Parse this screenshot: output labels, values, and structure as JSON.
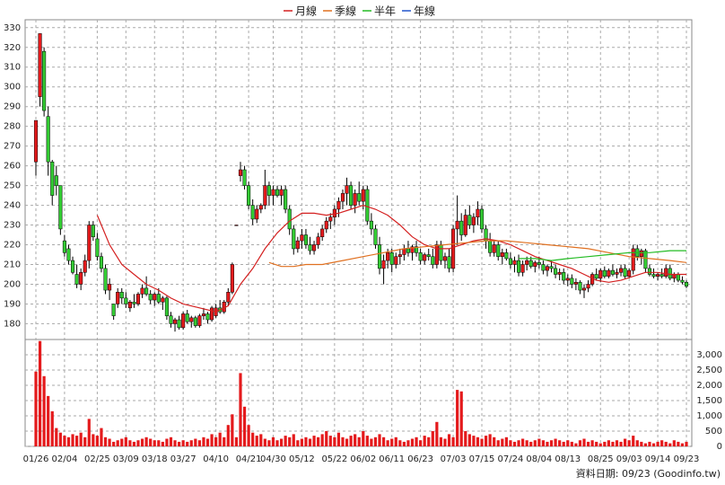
{
  "chart_data": {
    "type": "candlestick",
    "categories": [
      "01/26",
      null,
      null,
      null,
      null,
      null,
      null,
      "02/04",
      null,
      null,
      null,
      null,
      null,
      null,
      null,
      "02/25",
      null,
      null,
      null,
      null,
      null,
      null,
      "03/09",
      null,
      null,
      null,
      null,
      null,
      null,
      "03/18",
      null,
      null,
      null,
      null,
      null,
      null,
      "03/27",
      null,
      null,
      null,
      null,
      null,
      null,
      null,
      "04/10",
      null,
      null,
      null,
      null,
      null,
      null,
      null,
      "04/21",
      null,
      null,
      null,
      null,
      null,
      "04/30",
      null,
      null,
      null,
      null,
      null,
      null,
      "05/12",
      null,
      null,
      null,
      null,
      null,
      null,
      null,
      "05/22",
      null,
      null,
      null,
      null,
      null,
      null,
      "06/02",
      null,
      null,
      null,
      null,
      null,
      null,
      "06/11",
      null,
      null,
      null,
      null,
      null,
      null,
      "06/23",
      null,
      null,
      null,
      null,
      null,
      null,
      null,
      "07/03",
      null,
      null,
      null,
      null,
      null,
      null,
      "07/15",
      null,
      null,
      null,
      null,
      null,
      null,
      "07/24",
      null,
      null,
      null,
      null,
      null,
      null,
      "08/04",
      null,
      null,
      null,
      null,
      null,
      null,
      "08/13",
      null,
      null,
      null,
      null,
      null,
      null,
      null,
      "08/25",
      null,
      null,
      null,
      null,
      null,
      null,
      "09/03",
      null,
      null,
      null,
      null,
      null,
      null,
      "09/14",
      null,
      null,
      null,
      null,
      null,
      null,
      "09/23"
    ],
    "candles": [
      [
        262,
        283,
        255,
        283
      ],
      [
        295,
        327,
        290,
        327
      ],
      [
        318,
        320,
        285,
        288
      ],
      [
        285,
        290,
        255,
        262
      ],
      [
        262,
        263,
        240,
        245
      ],
      [
        255,
        260,
        245,
        250
      ],
      [
        250,
        250,
        225,
        228
      ],
      [
        222,
        225,
        214,
        216
      ],
      [
        218,
        220,
        210,
        212
      ],
      [
        212,
        214,
        205,
        206
      ],
      [
        205,
        210,
        198,
        200
      ],
      [
        200,
        208,
        197,
        206
      ],
      [
        206,
        215,
        204,
        212
      ],
      [
        212,
        232,
        208,
        230
      ],
      [
        230,
        232,
        222,
        224
      ],
      [
        223,
        226,
        212,
        214
      ],
      [
        214,
        216,
        206,
        208
      ],
      [
        208,
        210,
        195,
        197
      ],
      [
        197,
        203,
        192,
        200
      ],
      [
        190,
        190,
        182,
        184
      ],
      [
        190,
        198,
        188,
        196
      ],
      [
        196,
        198,
        190,
        193
      ],
      [
        193,
        196,
        188,
        190
      ],
      [
        188,
        192,
        186,
        191
      ],
      [
        191,
        195,
        188,
        190
      ],
      [
        190,
        196,
        189,
        195
      ],
      [
        195,
        200,
        193,
        198
      ],
      [
        198,
        204,
        194,
        195
      ],
      [
        195,
        197,
        190,
        192
      ],
      [
        192,
        196,
        189,
        195
      ],
      [
        195,
        198,
        190,
        191
      ],
      [
        191,
        194,
        187,
        193
      ],
      [
        193,
        194,
        182,
        184
      ],
      [
        184,
        186,
        178,
        180
      ],
      [
        180,
        183,
        176,
        182
      ],
      [
        182,
        184,
        177,
        178
      ],
      [
        178,
        186,
        177,
        185
      ],
      [
        185,
        187,
        180,
        181
      ],
      [
        181,
        184,
        178,
        183
      ],
      [
        183,
        184,
        178,
        179
      ],
      [
        179,
        185,
        178,
        184
      ],
      [
        184,
        188,
        182,
        185
      ],
      [
        185,
        186,
        180,
        182
      ],
      [
        182,
        189,
        181,
        188
      ],
      [
        184,
        190,
        183,
        188
      ],
      [
        188,
        192,
        185,
        186
      ],
      [
        186,
        192,
        185,
        191
      ],
      [
        191,
        198,
        189,
        196
      ],
      [
        196,
        211,
        195,
        210
      ],
      [
        230,
        230,
        230,
        230
      ],
      [
        255,
        262,
        252,
        258
      ],
      [
        258,
        260,
        248,
        250
      ],
      [
        250,
        252,
        238,
        240
      ],
      [
        240,
        243,
        230,
        233
      ],
      [
        233,
        240,
        231,
        238
      ],
      [
        238,
        241,
        236,
        240
      ],
      [
        240,
        258,
        238,
        250
      ],
      [
        250,
        252,
        240,
        245
      ],
      [
        245,
        250,
        240,
        248
      ],
      [
        248,
        250,
        244,
        245
      ],
      [
        245,
        250,
        240,
        248
      ],
      [
        248,
        250,
        236,
        238
      ],
      [
        238,
        240,
        225,
        228
      ],
      [
        228,
        230,
        215,
        218
      ],
      [
        218,
        224,
        216,
        222
      ],
      [
        222,
        228,
        218,
        225
      ],
      [
        225,
        228,
        218,
        220
      ],
      [
        220,
        224,
        215,
        217
      ],
      [
        217,
        222,
        215,
        220
      ],
      [
        220,
        226,
        218,
        224
      ],
      [
        224,
        230,
        222,
        228
      ],
      [
        228,
        234,
        226,
        232
      ],
      [
        232,
        236,
        228,
        234
      ],
      [
        234,
        240,
        230,
        238
      ],
      [
        238,
        244,
        234,
        242
      ],
      [
        242,
        248,
        238,
        246
      ],
      [
        246,
        254,
        240,
        250
      ],
      [
        250,
        252,
        238,
        240
      ],
      [
        240,
        248,
        236,
        246
      ],
      [
        246,
        252,
        240,
        242
      ],
      [
        242,
        250,
        238,
        248
      ],
      [
        248,
        250,
        230,
        232
      ],
      [
        232,
        236,
        225,
        228
      ],
      [
        228,
        230,
        218,
        220
      ],
      [
        220,
        224,
        205,
        208
      ],
      [
        208,
        215,
        200,
        212
      ],
      [
        212,
        218,
        208,
        216
      ],
      [
        216,
        218,
        206,
        210
      ],
      [
        210,
        216,
        208,
        214
      ],
      [
        214,
        218,
        210,
        215
      ],
      [
        215,
        220,
        212,
        218
      ],
      [
        218,
        222,
        214,
        216
      ],
      [
        216,
        220,
        212,
        219
      ],
      [
        219,
        222,
        214,
        216
      ],
      [
        216,
        218,
        210,
        212
      ],
      [
        212,
        216,
        210,
        215
      ],
      [
        215,
        218,
        212,
        214
      ],
      [
        214,
        218,
        208,
        210
      ],
      [
        210,
        222,
        208,
        220
      ],
      [
        220,
        222,
        210,
        212
      ],
      [
        212,
        216,
        208,
        214
      ],
      [
        214,
        218,
        206,
        208
      ],
      [
        208,
        230,
        206,
        228
      ],
      [
        228,
        245,
        220,
        232
      ],
      [
        232,
        236,
        222,
        225
      ],
      [
        225,
        238,
        224,
        235
      ],
      [
        235,
        240,
        228,
        230
      ],
      [
        230,
        236,
        226,
        234
      ],
      [
        234,
        242,
        230,
        238
      ],
      [
        238,
        240,
        226,
        228
      ],
      [
        228,
        230,
        218,
        222
      ],
      [
        222,
        226,
        214,
        216
      ],
      [
        216,
        222,
        214,
        220
      ],
      [
        220,
        222,
        212,
        214
      ],
      [
        214,
        218,
        210,
        216
      ],
      [
        216,
        218,
        212,
        213
      ],
      [
        213,
        216,
        208,
        210
      ],
      [
        210,
        214,
        206,
        212
      ],
      [
        212,
        215,
        204,
        206
      ],
      [
        206,
        212,
        204,
        210
      ],
      [
        210,
        214,
        207,
        212
      ],
      [
        212,
        214,
        208,
        209
      ],
      [
        209,
        212,
        206,
        211
      ],
      [
        211,
        214,
        208,
        210
      ],
      [
        210,
        212,
        205,
        207
      ],
      [
        207,
        210,
        204,
        209
      ],
      [
        209,
        212,
        206,
        208
      ],
      [
        208,
        210,
        203,
        205
      ],
      [
        205,
        208,
        202,
        206
      ],
      [
        206,
        208,
        200,
        202
      ],
      [
        202,
        205,
        199,
        203
      ],
      [
        203,
        205,
        198,
        200
      ],
      [
        200,
        203,
        197,
        201
      ],
      [
        201,
        202,
        195,
        197
      ],
      [
        197,
        200,
        193,
        198
      ],
      [
        198,
        202,
        196,
        200
      ],
      [
        200,
        206,
        199,
        205
      ],
      [
        205,
        208,
        202,
        203
      ],
      [
        203,
        208,
        201,
        207
      ],
      [
        207,
        209,
        203,
        204
      ],
      [
        204,
        208,
        203,
        207
      ],
      [
        207,
        210,
        204,
        205
      ],
      [
        205,
        208,
        203,
        206
      ],
      [
        206,
        210,
        204,
        208
      ],
      [
        208,
        210,
        203,
        204
      ],
      [
        204,
        208,
        203,
        207
      ],
      [
        207,
        220,
        205,
        218
      ],
      [
        218,
        220,
        212,
        214
      ],
      [
        214,
        218,
        210,
        217
      ],
      [
        217,
        218,
        206,
        208
      ],
      [
        208,
        210,
        204,
        205
      ],
      [
        205,
        208,
        203,
        204
      ],
      [
        204,
        206,
        202,
        205
      ],
      [
        205,
        208,
        203,
        204
      ],
      [
        204,
        210,
        203,
        208
      ],
      [
        208,
        210,
        202,
        203
      ],
      [
        203,
        206,
        201,
        205
      ],
      [
        205,
        206,
        201,
        202
      ],
      [
        202,
        204,
        200,
        201
      ],
      [
        201,
        202,
        198,
        199
      ]
    ],
    "up_color": "#e41a1c",
    "down_color": "#33cc33",
    "volume": [
      2450,
      3450,
      2300,
      1650,
      1150,
      600,
      450,
      350,
      300,
      400,
      350,
      450,
      300,
      900,
      400,
      350,
      600,
      300,
      250,
      150,
      200,
      250,
      300,
      200,
      150,
      200,
      250,
      300,
      250,
      200,
      200,
      150,
      250,
      300,
      200,
      150,
      200,
      150,
      200,
      250,
      200,
      300,
      250,
      400,
      300,
      450,
      300,
      700,
      1050,
      300,
      2400,
      1300,
      700,
      450,
      350,
      400,
      250,
      200,
      300,
      200,
      250,
      350,
      300,
      400,
      200,
      250,
      300,
      250,
      350,
      300,
      400,
      500,
      350,
      300,
      450,
      300,
      250,
      350,
      400,
      300,
      500,
      350,
      250,
      300,
      400,
      300,
      200,
      250,
      300,
      200,
      150,
      200,
      250,
      300,
      200,
      350,
      300,
      500,
      800,
      300,
      250,
      400,
      300,
      1850,
      1800,
      500,
      400,
      350,
      300,
      250,
      350,
      400,
      300,
      200,
      250,
      300,
      200,
      150,
      200,
      250,
      200,
      150,
      200,
      250,
      200,
      150,
      200,
      250,
      200,
      150,
      200,
      150,
      100,
      200,
      250,
      150,
      200,
      150,
      100,
      150,
      200,
      150,
      200,
      150,
      250,
      200,
      350,
      200,
      150,
      100,
      150,
      100,
      150,
      200,
      150,
      100,
      200,
      150,
      100,
      150
    ],
    "volume_color": "#e41a1c",
    "series": [
      {
        "name": "月線",
        "color": "#d42020",
        "x": [
          15,
          18,
          21,
          24,
          27,
          30,
          33,
          36,
          40,
          44,
          47,
          50,
          53,
          56,
          59,
          62,
          65,
          68,
          71,
          74,
          77,
          80,
          83,
          86,
          89,
          92,
          95,
          98,
          101,
          104,
          107,
          110,
          113,
          116,
          119,
          122,
          125,
          128,
          131,
          134,
          137,
          140,
          143,
          146,
          149,
          152,
          155,
          159
        ],
        "values": [
          235,
          220,
          210,
          205,
          200,
          197,
          193,
          190,
          188,
          186,
          189,
          200,
          208,
          218,
          226,
          232,
          236,
          236,
          235,
          236,
          238,
          240,
          238,
          235,
          230,
          224,
          220,
          218,
          218,
          220,
          222,
          223,
          222,
          220,
          217,
          214,
          212,
          210,
          208,
          205,
          202,
          201,
          202,
          204,
          206,
          206,
          205,
          205
        ]
      },
      {
        "name": "季線",
        "color": "#e07020",
        "x": [
          57,
          60,
          63,
          66,
          70,
          75,
          80,
          85,
          90,
          95,
          100,
          105,
          110,
          115,
          120,
          125,
          130,
          135,
          140,
          145,
          150,
          155,
          159
        ],
        "values": [
          211,
          209,
          209,
          210,
          210,
          212,
          214,
          216,
          218,
          219,
          220,
          221,
          222,
          222,
          221,
          220,
          219,
          218,
          216,
          214,
          213,
          212,
          211
        ]
      },
      {
        "name": "半年",
        "color": "#22bb22",
        "x": [
          118,
          122,
          126,
          130,
          135,
          140,
          145,
          150,
          155,
          159
        ],
        "values": [
          213,
          213,
          212,
          213,
          214,
          215,
          216,
          216,
          217,
          217
        ]
      },
      {
        "name": "年線",
        "color": "#2255cc",
        "x": [],
        "values": []
      }
    ],
    "ylim": [
      172,
      334
    ],
    "yticks": [
      180,
      190,
      200,
      210,
      220,
      230,
      240,
      250,
      260,
      270,
      280,
      290,
      300,
      310,
      320,
      330
    ],
    "y2lim": [
      0,
      3500
    ],
    "y2ticks": [
      0,
      500,
      {
        "value": 1000,
        "label": "1,000"
      },
      {
        "value": 1500,
        "label": "1,500"
      },
      {
        "value": 2000,
        "label": "2,000"
      },
      {
        "value": 2500,
        "label": "2,500"
      },
      {
        "value": 3000,
        "label": "3,000"
      }
    ],
    "grid": true,
    "footer": "資料日期: 09/23 (Goodinfo.tw)"
  }
}
